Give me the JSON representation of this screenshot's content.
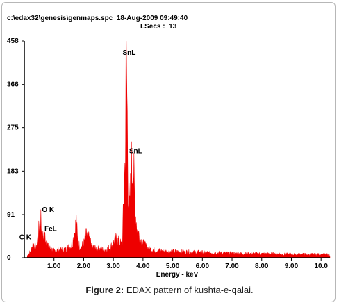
{
  "header": {
    "line1": "c:\\edax32\\genesis\\genmaps.spc  18-Aug-2009 09:49:40",
    "line2": "LSecs :  13"
  },
  "caption": {
    "label": "Figure 2:",
    "text": " EDAX pattern of kushta-e-qalai."
  },
  "colors": {
    "spectrum": "#ee0000",
    "axis": "#000000"
  },
  "chart_data": {
    "type": "area",
    "title": "",
    "xlabel": "Energy - keV",
    "ylabel": "",
    "xlim": [
      0,
      10.3
    ],
    "ylim": [
      0,
      458
    ],
    "x_ticks": [
      "1.00",
      "2.00",
      "3.00",
      "4.00",
      "5.00",
      "6.00",
      "7.00",
      "8.00",
      "9.00",
      "10.0"
    ],
    "y_ticks": [
      "0",
      "91",
      "183",
      "275",
      "366",
      "458"
    ],
    "peaks": [
      {
        "label": "C K",
        "energy": 0.28,
        "counts": 30
      },
      {
        "label": "O K",
        "energy": 0.52,
        "counts": 88
      },
      {
        "label": "FeL",
        "energy": 0.7,
        "counts": 45
      },
      {
        "label": "SnL",
        "energy": 3.44,
        "counts": 420
      },
      {
        "label": "SnL",
        "energy": 3.66,
        "counts": 212
      }
    ],
    "series": [
      {
        "x": [
          0.1,
          0.2,
          0.3,
          0.4,
          0.5,
          0.55,
          0.6,
          0.7,
          0.8,
          1.0,
          1.2,
          1.4,
          1.6,
          1.7,
          1.75,
          1.8,
          1.9,
          2.0,
          2.1,
          2.2,
          2.3,
          2.5,
          2.7,
          2.9,
          3.0,
          3.1,
          3.2,
          3.3,
          3.4,
          3.44,
          3.5,
          3.55,
          3.6,
          3.66,
          3.72,
          3.8,
          3.9,
          4.0,
          4.2,
          4.5,
          5.0,
          5.5,
          6.0,
          6.5,
          7.0,
          7.5,
          8.0,
          8.5,
          9.0,
          9.5,
          10.0,
          10.3
        ],
        "y": [
          4,
          12,
          30,
          18,
          60,
          88,
          40,
          45,
          22,
          14,
          16,
          18,
          26,
          55,
          75,
          30,
          22,
          28,
          48,
          34,
          20,
          18,
          17,
          21,
          30,
          38,
          32,
          24,
          210,
          420,
          150,
          90,
          175,
          212,
          110,
          60,
          40,
          28,
          18,
          15,
          13,
          12,
          11,
          10,
          9,
          9,
          8,
          8,
          7,
          7,
          7,
          6
        ]
      }
    ]
  }
}
